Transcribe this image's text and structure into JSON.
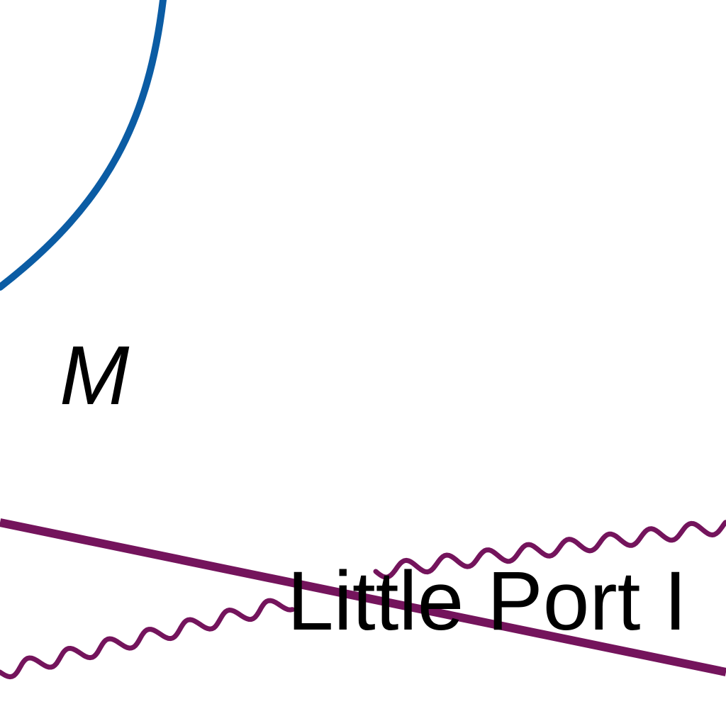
{
  "map": {
    "colors": {
      "background": "#ffffff",
      "water_line": "#0b5ca4",
      "route_line": "#74145c",
      "label": "#000000"
    },
    "labels": {
      "place": "Little Port I",
      "symbol": "M"
    },
    "features": [
      {
        "name": "blue-curve-line",
        "kind": "water-boundary"
      },
      {
        "name": "purple-straight-line",
        "kind": "route"
      },
      {
        "name": "purple-wavy-line-upper",
        "kind": "route-wavy"
      },
      {
        "name": "purple-wavy-line-lower",
        "kind": "route-wavy"
      }
    ]
  }
}
